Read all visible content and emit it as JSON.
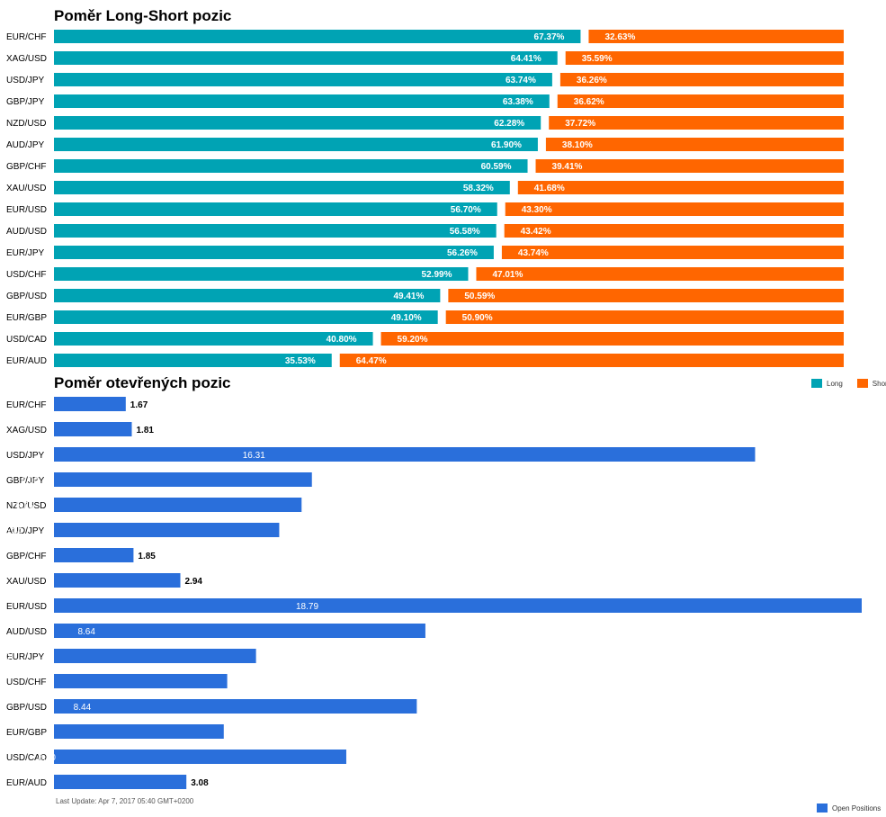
{
  "chart_data": [
    {
      "type": "bar",
      "stacked": true,
      "orientation": "horizontal",
      "title": "Poměr Long-Short pozic",
      "categories": [
        "EUR/CHF",
        "XAG/USD",
        "USD/JPY",
        "GBP/JPY",
        "NZD/USD",
        "AUD/JPY",
        "GBP/CHF",
        "XAU/USD",
        "EUR/USD",
        "AUD/USD",
        "EUR/JPY",
        "USD/CHF",
        "GBP/USD",
        "EUR/GBP",
        "USD/CAD",
        "EUR/AUD"
      ],
      "series": [
        {
          "name": "Long",
          "color": "#00a3b4",
          "values": [
            67.37,
            64.41,
            63.74,
            63.38,
            62.28,
            61.9,
            60.59,
            58.32,
            56.7,
            56.58,
            56.26,
            52.99,
            49.41,
            49.1,
            40.8,
            35.53
          ],
          "labels": [
            "67.37%",
            "64.41%",
            "63.74%",
            "63.38%",
            "62.28%",
            "61.90%",
            "60.59%",
            "58.32%",
            "56.70%",
            "56.58%",
            "56.26%",
            "52.99%",
            "49.41%",
            "49.10%",
            "40.80%",
            "35.53%"
          ]
        },
        {
          "name": "Short",
          "color": "#ff6600",
          "values": [
            32.63,
            35.59,
            36.26,
            36.62,
            37.72,
            38.1,
            39.41,
            41.68,
            43.3,
            43.42,
            43.74,
            47.01,
            50.59,
            50.9,
            59.2,
            64.47
          ],
          "labels": [
            "32.63%",
            "35.59%",
            "36.26%",
            "36.62%",
            "37.72%",
            "38.10%",
            "39.41%",
            "41.68%",
            "43.30%",
            "43.42%",
            "43.74%",
            "47.01%",
            "50.59%",
            "50.90%",
            "59.20%",
            "64.47%"
          ]
        }
      ],
      "xlim": [
        0,
        100
      ],
      "grid": false,
      "legend": "bottom-right"
    },
    {
      "type": "bar",
      "orientation": "horizontal",
      "title": "Poměr otevřených pozic",
      "categories": [
        "EUR/CHF",
        "XAG/USD",
        "USD/JPY",
        "GBP/JPY",
        "NZD/USD",
        "AUD/JPY",
        "GBP/CHF",
        "XAU/USD",
        "EUR/USD",
        "AUD/USD",
        "EUR/JPY",
        "USD/CHF",
        "GBP/USD",
        "EUR/GBP",
        "USD/CAD",
        "EUR/AUD"
      ],
      "series": [
        {
          "name": "Open Positions",
          "color": "#2a6fdb",
          "values": [
            1.67,
            1.81,
            16.31,
            6.0,
            5.76,
            5.24,
            1.85,
            2.94,
            18.79,
            8.64,
            4.7,
            4.03,
            8.44,
            3.95,
            6.8,
            3.08
          ],
          "labels": [
            "1.67",
            "1.81",
            "16.31",
            "6.00",
            "5.76",
            "5.24",
            "1.85",
            "2.94",
            "18.79",
            "8.64",
            "4.70",
            "4.03",
            "8.44",
            "3.95",
            "6.80",
            "3.08"
          ]
        }
      ],
      "xlim": [
        0,
        18.79
      ],
      "grid": false,
      "legend": "bottom-right"
    }
  ],
  "footer": {
    "last_update": "Last Update: Apr 7, 2017 05:40 GMT+0200"
  }
}
